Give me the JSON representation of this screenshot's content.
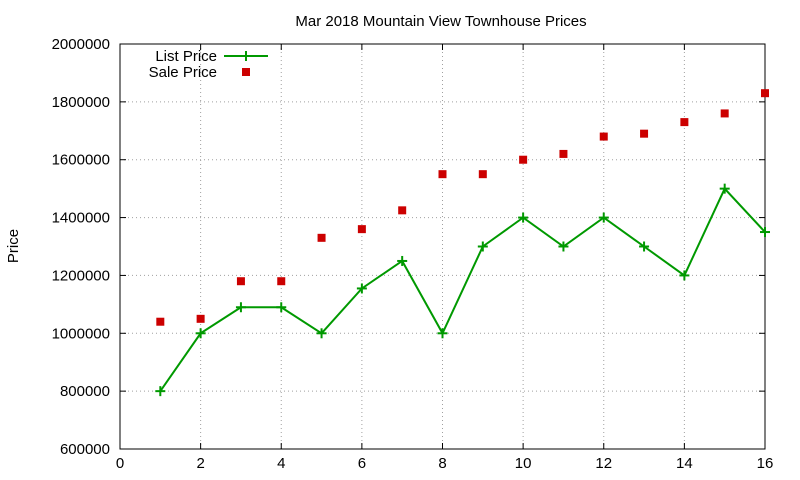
{
  "chart_data": {
    "type": "line",
    "title": "Mar 2018 Mountain View Townhouse Prices",
    "xlabel": "",
    "ylabel": "Price",
    "xlim": [
      0,
      16
    ],
    "ylim": [
      600000,
      2000000
    ],
    "x_ticks": [
      0,
      2,
      4,
      6,
      8,
      10,
      12,
      14,
      16
    ],
    "y_ticks": [
      600000,
      800000,
      1000000,
      1200000,
      1400000,
      1600000,
      1800000,
      2000000
    ],
    "grid": true,
    "legend_position": "top-left",
    "series": [
      {
        "name": "List Price",
        "style": "line-with-plus-markers",
        "color": "#009900",
        "x": [
          1,
          2,
          3,
          4,
          5,
          6,
          7,
          8,
          9,
          10,
          11,
          12,
          13,
          14,
          15,
          16
        ],
        "values": [
          800000,
          1000000,
          1090000,
          1090000,
          1000000,
          1155000,
          1250000,
          1000000,
          1300000,
          1400000,
          1300000,
          1400000,
          1300000,
          1200000,
          1500000,
          1350000
        ]
      },
      {
        "name": "Sale Price",
        "style": "square-markers",
        "color": "#cc0000",
        "x": [
          1,
          2,
          3,
          4,
          5,
          6,
          7,
          8,
          9,
          10,
          11,
          12,
          13,
          14,
          15,
          16
        ],
        "values": [
          1040000,
          1050000,
          1180000,
          1180000,
          1330000,
          1360000,
          1425000,
          1550000,
          1550000,
          1600000,
          1620000,
          1680000,
          1690000,
          1730000,
          1760000,
          1830000
        ]
      }
    ]
  }
}
